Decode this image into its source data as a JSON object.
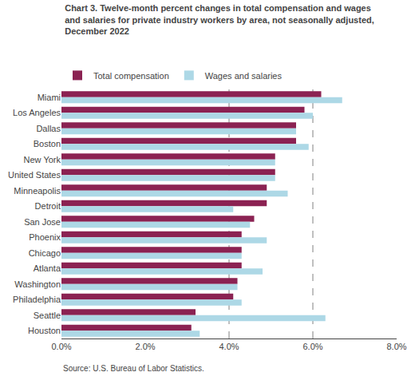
{
  "chart_data": {
    "type": "bar",
    "orientation": "horizontal",
    "title": "Chart 3. Twelve-month percent changes in total compensation and wages\nand salaries for private industry workers by area, not seasonally adjusted,\nDecember 2022",
    "categories": [
      "Miami",
      "Los Angeles",
      "Dallas",
      "Boston",
      "New York",
      "United States",
      "Minneapolis",
      "Detroit",
      "San Jose",
      "Phoenix",
      "Chicago",
      "Atlanta",
      "Washington",
      "Philadelphia",
      "Seattle",
      "Houston"
    ],
    "series": [
      {
        "name": "Total compensation",
        "color": "#8B2252",
        "values": [
          6.2,
          5.8,
          5.6,
          5.6,
          5.1,
          5.1,
          4.9,
          4.9,
          4.6,
          4.3,
          4.3,
          4.3,
          4.2,
          4.1,
          3.2,
          3.1
        ]
      },
      {
        "name": "Wages and salaries",
        "color": "#ADD8E6",
        "values": [
          6.7,
          6.0,
          5.6,
          5.9,
          5.1,
          5.1,
          5.4,
          4.1,
          4.5,
          4.9,
          4.3,
          4.8,
          4.2,
          4.3,
          6.3,
          3.3
        ]
      }
    ],
    "xlim": [
      0,
      8
    ],
    "xticks": [
      {
        "value": 0,
        "label": "0.0%"
      },
      {
        "value": 2,
        "label": "2.0%"
      },
      {
        "value": 4,
        "label": "4.0%"
      },
      {
        "value": 6,
        "label": "6.0%"
      },
      {
        "value": 8,
        "label": "8.0%"
      }
    ],
    "reference_lines": [
      4,
      6
    ],
    "grid": false,
    "legend": "top",
    "source": "Source: U.S. Bureau of Labor Statistics."
  }
}
